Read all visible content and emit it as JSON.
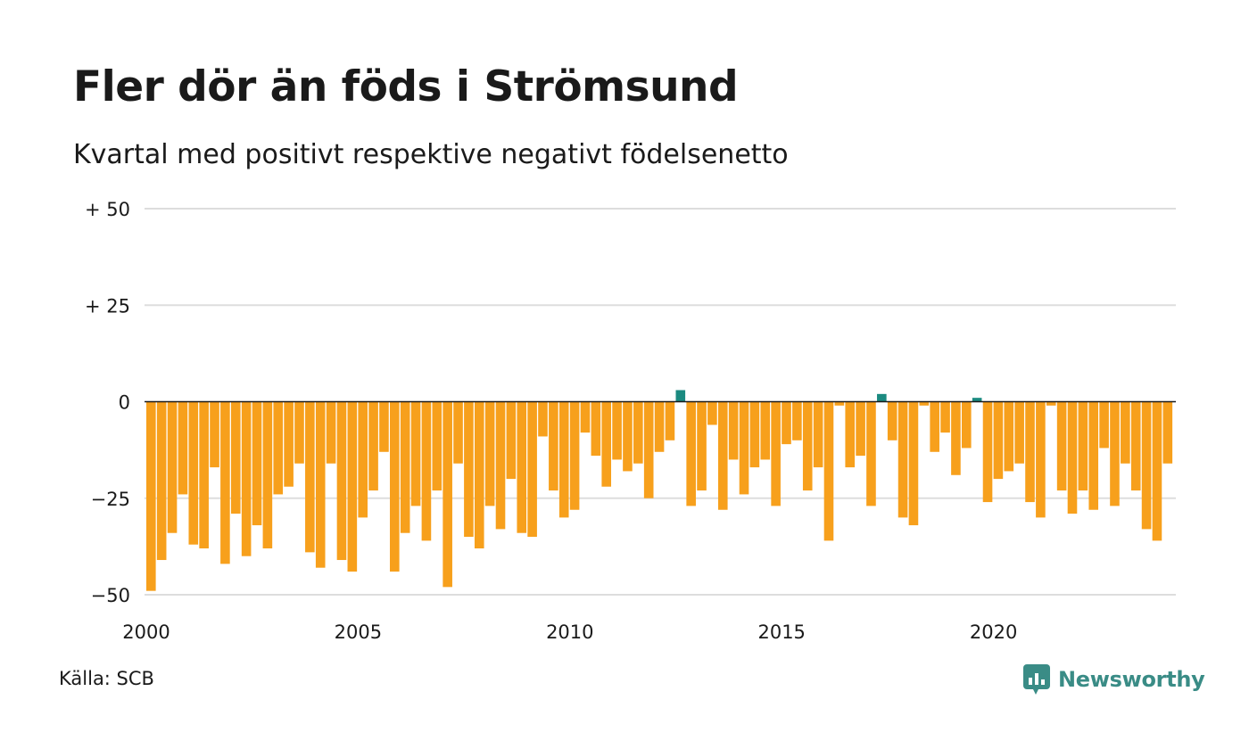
{
  "title": "Fler dör än föds i Strömsund",
  "subtitle": "Kvartal med positivt respektive negativt födelsenetto",
  "source": "Källa: SCB",
  "brand": {
    "name": "Newsworthy",
    "icon": "chart-bubble-icon",
    "color": "#3a8c86"
  },
  "colors": {
    "positive": "#1b8a80",
    "negative": "#f7a01c",
    "grid": "#dddddd",
    "zero_line": "#1a1a1a"
  },
  "chart_data": {
    "type": "bar",
    "x_start": 2000,
    "periods_per_year": 4,
    "xticks": [
      2000,
      2005,
      2010,
      2015,
      2020
    ],
    "xtick_labels": [
      "2000",
      "2005",
      "2010",
      "2015",
      "2020"
    ],
    "yticks": [
      50,
      25,
      0,
      -25,
      -50
    ],
    "ytick_labels": [
      "+ 50",
      "+ 25",
      "0",
      "−25",
      "−50"
    ],
    "ylim": [
      -50,
      50
    ],
    "grid": true,
    "values": [
      -49,
      -41,
      -34,
      -24,
      -37,
      -38,
      -17,
      -42,
      -29,
      -40,
      -32,
      -38,
      -24,
      -22,
      -16,
      -39,
      -43,
      -16,
      -41,
      -44,
      -30,
      -23,
      -13,
      -44,
      -34,
      -27,
      -36,
      -23,
      -48,
      -16,
      -35,
      -38,
      -27,
      -33,
      -20,
      -34,
      -35,
      -9,
      -23,
      -30,
      -28,
      -8,
      -14,
      -22,
      -15,
      -18,
      -16,
      -25,
      -13,
      -10,
      3,
      -27,
      -23,
      -6,
      -28,
      -15,
      -24,
      -17,
      -15,
      -27,
      -11,
      -10,
      -23,
      -17,
      -36,
      -1,
      -17,
      -14,
      -27,
      2,
      -10,
      -30,
      -32,
      -1,
      -13,
      -8,
      -19,
      -12,
      1,
      -26,
      -20,
      -18,
      -16,
      -26,
      -30,
      -1,
      -23,
      -29,
      -23,
      -28,
      -12,
      -27,
      -16,
      -23,
      -33,
      -36,
      -16
    ]
  }
}
